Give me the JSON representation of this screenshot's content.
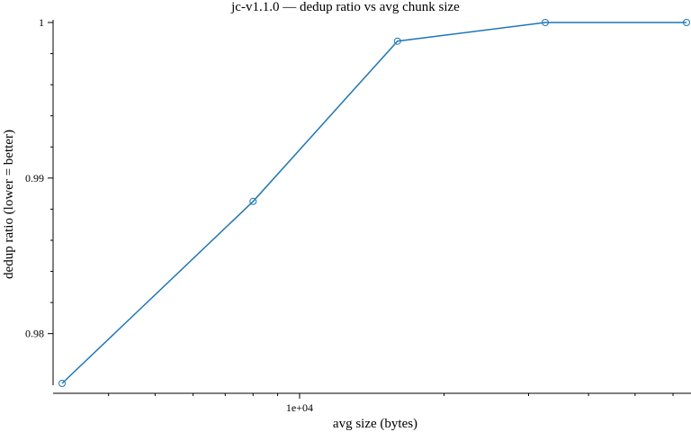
{
  "chart_data": {
    "type": "line",
    "title": "jc-v1.1.0 — dedup ratio vs avg chunk size",
    "xlabel": "avg size (bytes)",
    "ylabel": "dedup ratio (lower = better)",
    "x_scale": "log",
    "xlim": [
      3150,
      40000
    ],
    "ylim": [
      0.9768,
      1.0
    ],
    "x_major_ticks": [
      {
        "value": 10000,
        "label": "1e+04"
      }
    ],
    "x_minor_ticks": [
      4000,
      5000,
      6000,
      7000,
      8000,
      9000,
      20000,
      30000,
      40000
    ],
    "y_major_ticks": [
      {
        "value": 0.98,
        "label": "0.98"
      },
      {
        "value": 0.99,
        "label": "0.99"
      },
      {
        "value": 1.0,
        "label": "1"
      }
    ],
    "y_minor_ticks": [
      0.982,
      0.984,
      0.986,
      0.988,
      0.992,
      0.994,
      0.996,
      0.998
    ],
    "grid": false,
    "color": "#1f77b4",
    "series": [
      {
        "x": [
          3200,
          8000,
          16000,
          32500,
          64000
        ],
        "y": [
          0.9768,
          0.9885,
          0.9988,
          1.0,
          1.0
        ],
        "marker": "circle-open"
      }
    ]
  }
}
